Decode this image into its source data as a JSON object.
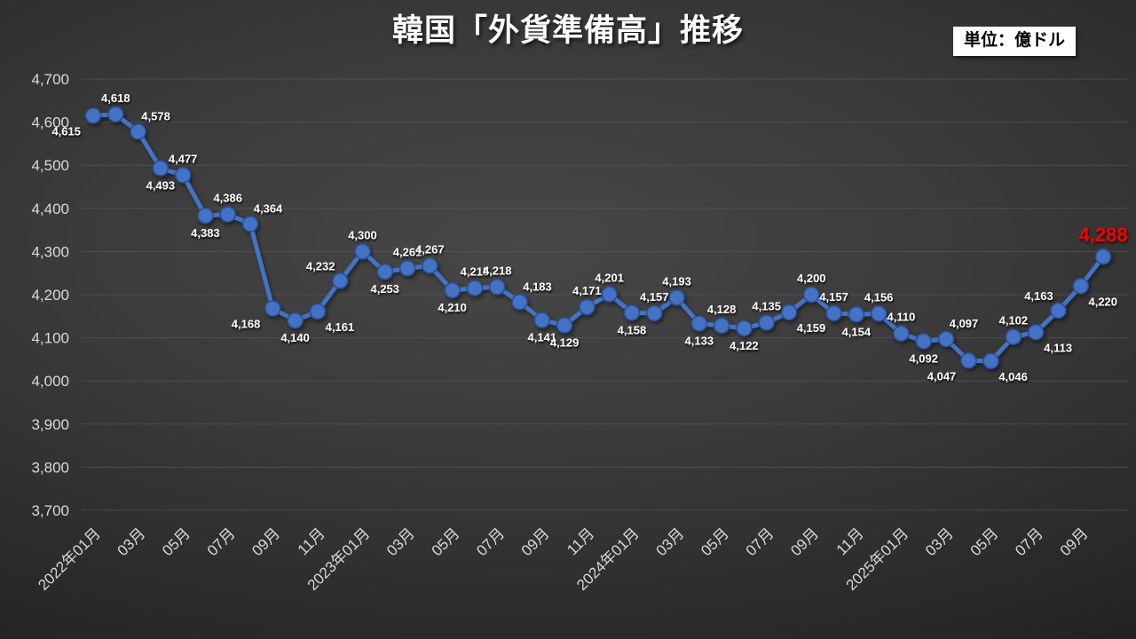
{
  "title": "韓国「外貨準備高」推移",
  "unit_badge": "単位：億ドル",
  "colors": {
    "line": "#4472C4",
    "marker_stroke": "#2B4F93",
    "data_label": "#FFFFFF",
    "highlight_label": "#FF0000",
    "axis_text": "#D9D9D9",
    "grid": "#5E5E5E"
  },
  "chart_data": {
    "type": "line",
    "title": "韓国「外貨準備高」推移",
    "unit": "億ドル",
    "x": [
      "2022-01",
      "2022-02",
      "2022-03",
      "2022-04",
      "2022-05",
      "2022-06",
      "2022-07",
      "2022-08",
      "2022-09",
      "2022-10",
      "2022-11",
      "2022-12",
      "2023-01",
      "2023-02",
      "2023-03",
      "2023-04",
      "2023-05",
      "2023-06",
      "2023-07",
      "2023-08",
      "2023-09",
      "2023-10",
      "2023-11",
      "2023-12",
      "2024-01",
      "2024-02",
      "2024-03",
      "2024-04",
      "2024-05",
      "2024-06",
      "2024-07",
      "2024-08",
      "2024-09",
      "2024-10",
      "2024-11",
      "2024-12",
      "2025-01",
      "2025-02",
      "2025-03",
      "2025-04",
      "2025-05",
      "2025-06",
      "2025-07",
      "2025-08",
      "2025-09",
      "2025-10"
    ],
    "values": [
      4615,
      4618,
      4578,
      4493,
      4477,
      4383,
      4386,
      4364,
      4168,
      4140,
      4161,
      4232,
      4300,
      4253,
      4261,
      4267,
      4210,
      4215,
      4218,
      4183,
      4141,
      4129,
      4171,
      4201,
      4158,
      4157,
      4193,
      4133,
      4128,
      4122,
      4135,
      4159,
      4200,
      4157,
      4154,
      4156,
      4110,
      4092,
      4097,
      4047,
      4046,
      4102,
      4113,
      4163,
      4220,
      4288
    ],
    "label_placements": [
      "left-below",
      "above",
      "right-above",
      "below",
      "above",
      "below",
      "above",
      "right-above",
      "left-below",
      "below",
      "right-below",
      "left-above",
      "above",
      "below",
      "above",
      "above",
      "below",
      "above",
      "above",
      "right-above",
      "below",
      "below",
      "above",
      "above",
      "below",
      "above",
      "above",
      "below",
      "above",
      "below",
      "above",
      "right-below",
      "above",
      "above",
      "below",
      "above",
      "above",
      "below",
      "right-above",
      "left-below",
      "right-below",
      "above",
      "right-below",
      "left-above",
      "right-below",
      "above"
    ],
    "x_tick_every": 2,
    "x_tick_labels": [
      "2022年01月",
      "03月",
      "05月",
      "07月",
      "09月",
      "11月",
      "2023年01月",
      "03月",
      "05月",
      "07月",
      "09月",
      "11月",
      "2024年01月",
      "03月",
      "05月",
      "07月",
      "09月",
      "11月",
      "2025年01月",
      "03月",
      "05月",
      "07月",
      "09月"
    ],
    "ylim": [
      3700,
      4700
    ],
    "y_tick_step": 100,
    "grid": true,
    "legend": false,
    "highlight_last_label": true
  }
}
